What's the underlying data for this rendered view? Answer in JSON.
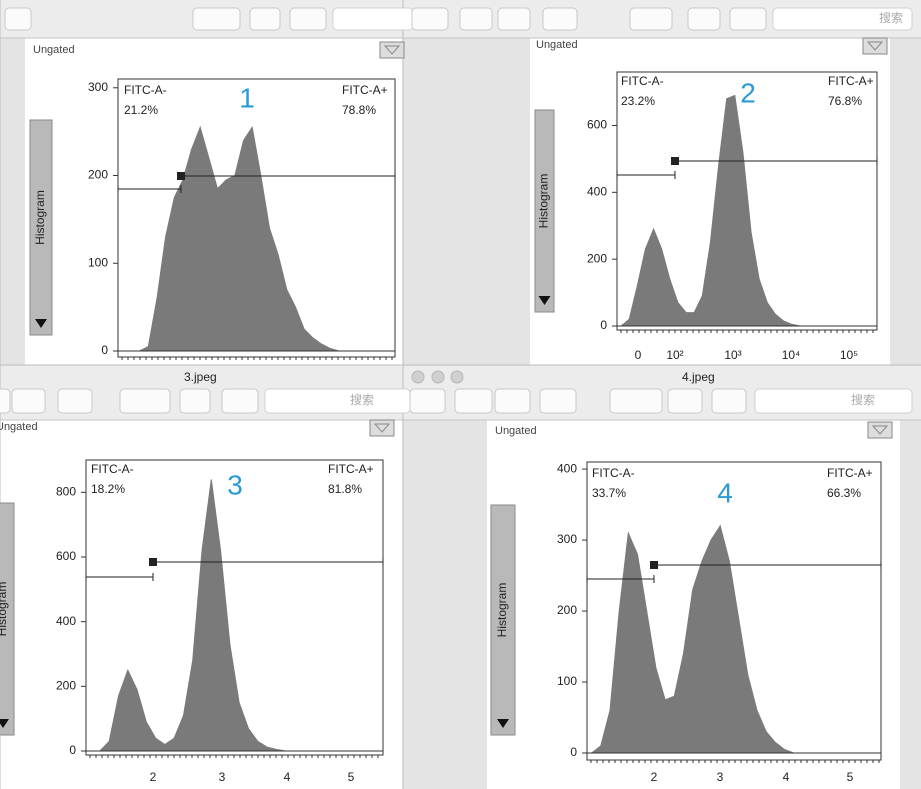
{
  "toolbars": {
    "search": "搜索",
    "titles": [
      "3.jpeg",
      "4.jpeg"
    ]
  },
  "panels": [
    {
      "gate_label": "Ungated",
      "side_label": "Histogram",
      "number": "1",
      "gate_left": {
        "name": "FITC-A-",
        "percent": "21.2%"
      },
      "gate_right": {
        "name": "FITC-A+",
        "percent": "78.8%"
      },
      "chart_data": {
        "type": "area",
        "color": "#7a7a7a",
        "ylim": [
          0,
          310
        ],
        "yticks": [
          0,
          100,
          200,
          300
        ],
        "xtick_labels": [],
        "values": [
          0,
          0,
          0,
          5,
          60,
          130,
          175,
          195,
          230,
          255,
          220,
          185,
          195,
          200,
          240,
          255,
          200,
          140,
          110,
          70,
          50,
          25,
          15,
          8,
          3,
          0,
          0,
          0,
          0,
          0,
          0,
          0
        ]
      }
    },
    {
      "gate_label": "Ungated",
      "side_label": "Histogram",
      "number": "2",
      "gate_left": {
        "name": "FITC-A-",
        "percent": "23.2%"
      },
      "gate_right": {
        "name": "FITC-A+",
        "percent": "76.8%"
      },
      "chart_data": {
        "type": "area",
        "color": "#7a7a7a",
        "ylim": [
          0,
          760
        ],
        "yticks": [
          0,
          200,
          400,
          600
        ],
        "xtick_labels": [
          "0",
          "10²",
          "10³",
          "10⁴",
          "10⁵"
        ],
        "values": [
          0,
          20,
          120,
          230,
          290,
          230,
          140,
          70,
          40,
          40,
          90,
          250,
          480,
          680,
          690,
          520,
          280,
          140,
          70,
          35,
          15,
          5,
          0,
          0,
          0,
          0,
          0,
          0,
          0,
          0,
          0,
          0
        ]
      }
    },
    {
      "gate_label": "Ungated",
      "side_label": "Histogram",
      "number": "3",
      "gate_left": {
        "name": "FITC-A-",
        "percent": "18.2%"
      },
      "gate_right": {
        "name": "FITC-A+",
        "percent": "81.8%"
      },
      "chart_data": {
        "type": "area",
        "color": "#7a7a7a",
        "ylim": [
          0,
          900
        ],
        "yticks": [
          0,
          200,
          400,
          600,
          800
        ],
        "xtick_labels": [
          "2",
          "3",
          "4",
          "5"
        ],
        "values": [
          0,
          0,
          30,
          170,
          250,
          190,
          90,
          40,
          20,
          40,
          110,
          280,
          620,
          840,
          620,
          330,
          150,
          70,
          30,
          12,
          5,
          0,
          0,
          0,
          0,
          0,
          0,
          0,
          0,
          0,
          0,
          0
        ]
      }
    },
    {
      "gate_label": "Ungated",
      "side_label": "Histogram",
      "number": "4",
      "gate_left": {
        "name": "FITC-A-",
        "percent": "33.7%"
      },
      "gate_right": {
        "name": "FITC-A+",
        "percent": "66.3%"
      },
      "chart_data": {
        "type": "area",
        "color": "#7a7a7a",
        "ylim": [
          0,
          410
        ],
        "yticks": [
          0,
          100,
          200,
          300,
          400
        ],
        "xtick_labels": [
          "2",
          "3",
          "4",
          "5"
        ],
        "values": [
          0,
          10,
          60,
          200,
          310,
          280,
          200,
          120,
          75,
          80,
          140,
          230,
          270,
          300,
          320,
          270,
          190,
          110,
          60,
          30,
          15,
          5,
          0,
          0,
          0,
          0,
          0,
          0,
          0,
          0,
          0,
          0
        ]
      }
    }
  ]
}
